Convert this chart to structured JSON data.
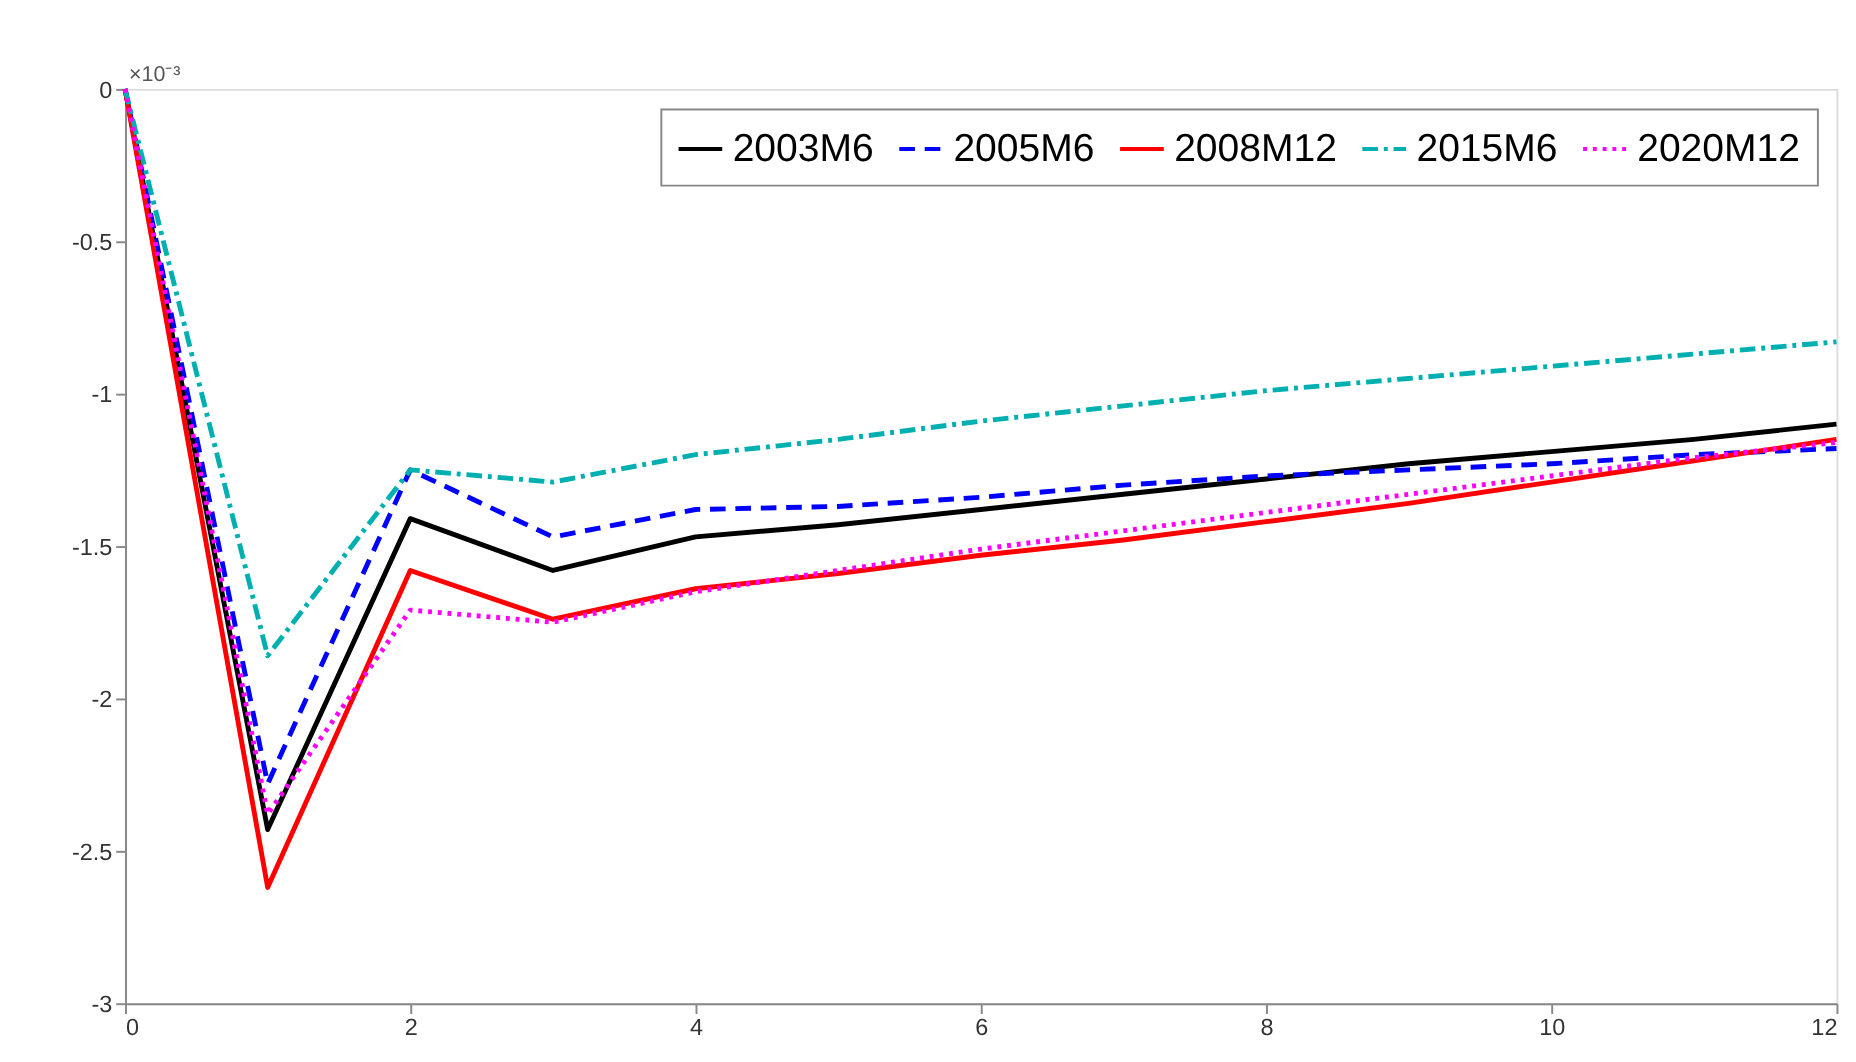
{
  "chart_data": {
    "type": "line",
    "x": [
      0,
      1,
      2,
      3,
      4,
      5,
      6,
      7,
      8,
      9,
      10,
      11,
      12
    ],
    "series": [
      {
        "name": "2003M6",
        "color": "#000000",
        "line_style": "solid",
        "values": [
          0,
          -2.43,
          -1.41,
          -1.58,
          -1.47,
          -1.43,
          -1.38,
          -1.33,
          -1.28,
          -1.23,
          -1.19,
          -1.15,
          -1.1
        ]
      },
      {
        "name": "2005M6",
        "color": "#0000ff",
        "line_style": "dashed",
        "values": [
          0,
          -2.28,
          -1.25,
          -1.47,
          -1.38,
          -1.37,
          -1.34,
          -1.3,
          -1.27,
          -1.25,
          -1.23,
          -1.2,
          -1.18
        ]
      },
      {
        "name": "2008M12",
        "color": "#ff0000",
        "line_style": "solid",
        "values": [
          0,
          -2.62,
          -1.58,
          -1.74,
          -1.64,
          -1.59,
          -1.53,
          -1.48,
          -1.42,
          -1.36,
          -1.29,
          -1.22,
          -1.15
        ]
      },
      {
        "name": "2015M6",
        "color": "#00b0b0",
        "line_style": "dashdot",
        "values": [
          0,
          -1.86,
          -1.25,
          -1.29,
          -1.2,
          -1.15,
          -1.09,
          -1.04,
          -0.99,
          -0.95,
          -0.91,
          -0.87,
          -0.83
        ]
      },
      {
        "name": "2020M12",
        "color": "#ff00ff",
        "line_style": "dotted",
        "values": [
          0,
          -2.38,
          -1.71,
          -1.75,
          -1.65,
          -1.58,
          -1.51,
          -1.45,
          -1.39,
          -1.33,
          -1.27,
          -1.21,
          -1.16
        ]
      }
    ],
    "xlim": [
      0,
      12
    ],
    "xticks": [
      0,
      2,
      4,
      6,
      8,
      10,
      12
    ],
    "ylim": [
      -3,
      0
    ],
    "yticks": [
      -3,
      -2.5,
      -2,
      -1.5,
      -1,
      -0.5,
      0
    ],
    "annotations": [
      "×10⁻³"
    ],
    "grid": false,
    "legend": "top right",
    "marker": "none"
  }
}
